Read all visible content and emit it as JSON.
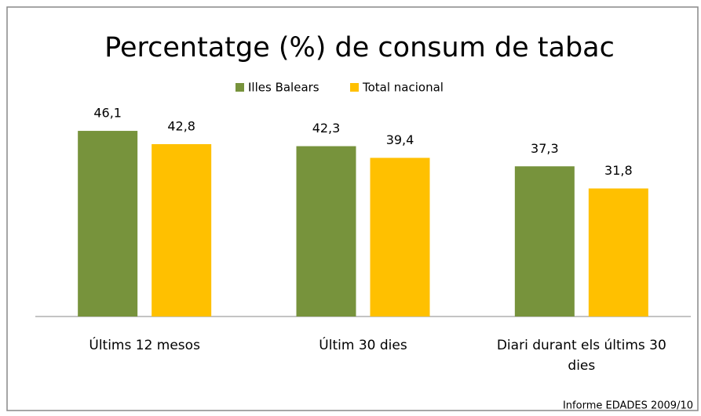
{
  "chart_data": {
    "type": "bar",
    "title": "Percentatge (%) de consum de tabac",
    "categories": [
      "Últims 12 mesos",
      "Últim 30 dies",
      "Diari durant els últims 30 dies"
    ],
    "series": [
      {
        "name": "Illes Balears",
        "color": "#77933c",
        "values": [
          46.1,
          42.3,
          37.3
        ],
        "value_labels": [
          "46,1",
          "42,3",
          "37,3"
        ]
      },
      {
        "name": "Total nacional",
        "color": "#ffc000",
        "values": [
          42.8,
          39.4,
          31.8
        ],
        "value_labels": [
          "42,8",
          "39,4",
          "31,8"
        ]
      }
    ],
    "legend": "top",
    "source": "Informe EDADES 2009/10"
  }
}
